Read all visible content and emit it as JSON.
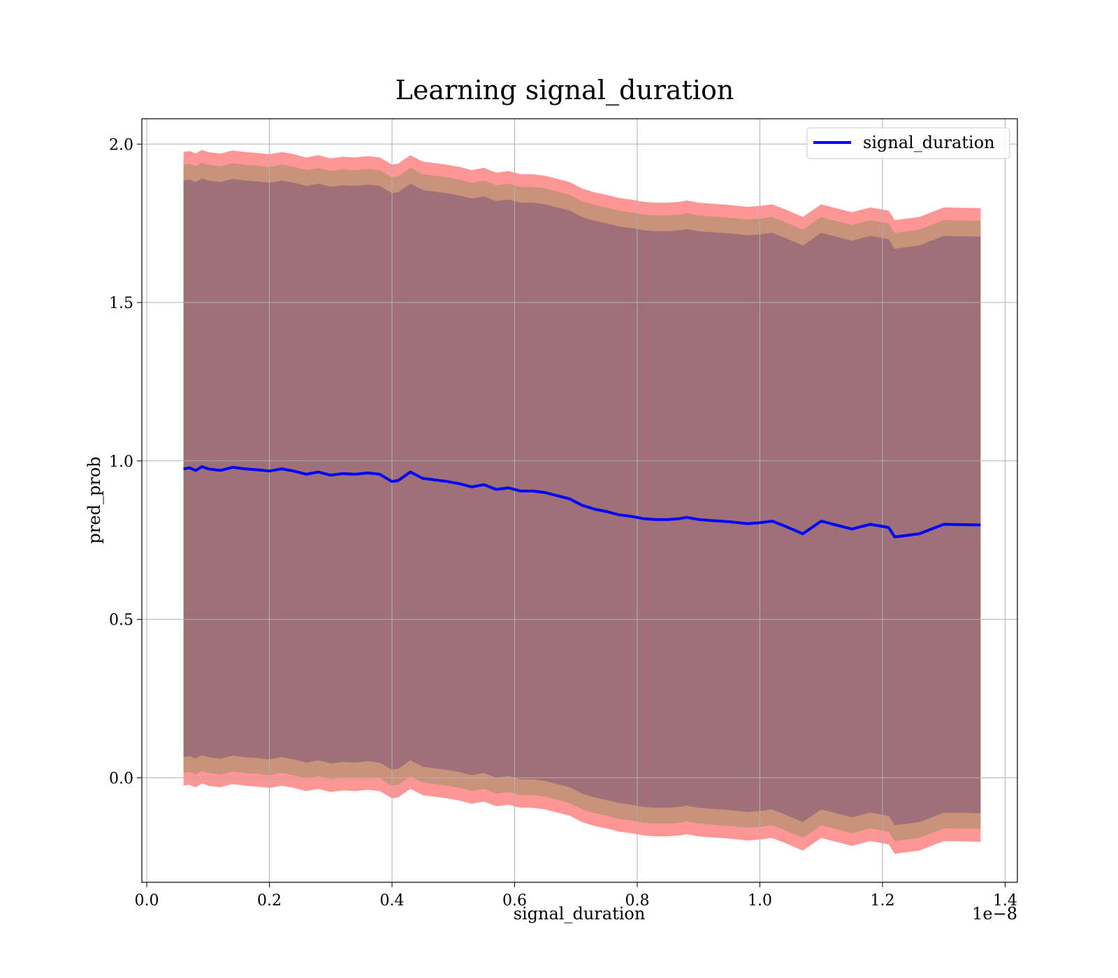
{
  "chart_data": {
    "type": "line",
    "title": "Learning signal_duration",
    "xlabel": "signal_duration",
    "ylabel": "pred_prob",
    "x_scale_label": "1e−8",
    "xlim": [
      -0.008,
      1.42
    ],
    "ylim": [
      -0.33,
      2.08
    ],
    "x_ticks": [
      0.0,
      0.2,
      0.4,
      0.6,
      0.8,
      1.0,
      1.2,
      1.4
    ],
    "x_tick_labels": [
      "0.0",
      "0.2",
      "0.4",
      "0.6",
      "0.8",
      "1.0",
      "1.2",
      "1.4"
    ],
    "y_ticks": [
      0.0,
      0.5,
      1.0,
      1.5,
      2.0
    ],
    "y_tick_labels": [
      "0.0",
      "0.5",
      "1.0",
      "1.5",
      "2.0"
    ],
    "grid": true,
    "legend_position": "top-right",
    "legend": [
      "signal_duration"
    ],
    "colors": {
      "line": "#0000ff",
      "band_outer": "#ff9696",
      "band_middle": "#c8937a",
      "band_inner": "#a07078"
    },
    "x": [
      0.06,
      0.07,
      0.08,
      0.09,
      0.1,
      0.12,
      0.14,
      0.16,
      0.18,
      0.2,
      0.22,
      0.24,
      0.26,
      0.28,
      0.3,
      0.32,
      0.34,
      0.36,
      0.38,
      0.4,
      0.41,
      0.43,
      0.45,
      0.47,
      0.49,
      0.51,
      0.53,
      0.55,
      0.57,
      0.59,
      0.61,
      0.63,
      0.65,
      0.67,
      0.69,
      0.71,
      0.73,
      0.75,
      0.77,
      0.79,
      0.81,
      0.83,
      0.85,
      0.87,
      0.88,
      0.9,
      0.92,
      0.95,
      0.98,
      1.0,
      1.02,
      1.04,
      1.07,
      1.1,
      1.12,
      1.15,
      1.18,
      1.21,
      1.22,
      1.26,
      1.3,
      1.36
    ],
    "series": [
      {
        "name": "signal_duration",
        "values": [
          0.975,
          0.978,
          0.97,
          0.982,
          0.975,
          0.97,
          0.98,
          0.975,
          0.972,
          0.968,
          0.975,
          0.968,
          0.958,
          0.965,
          0.955,
          0.96,
          0.958,
          0.962,
          0.958,
          0.935,
          0.938,
          0.965,
          0.945,
          0.94,
          0.935,
          0.928,
          0.918,
          0.925,
          0.91,
          0.915,
          0.905,
          0.905,
          0.9,
          0.89,
          0.88,
          0.86,
          0.848,
          0.84,
          0.83,
          0.825,
          0.818,
          0.815,
          0.815,
          0.818,
          0.822,
          0.815,
          0.812,
          0.808,
          0.802,
          0.805,
          0.81,
          0.795,
          0.77,
          0.81,
          0.8,
          0.785,
          0.8,
          0.79,
          0.76,
          0.77,
          0.8,
          0.798
        ]
      }
    ]
  }
}
